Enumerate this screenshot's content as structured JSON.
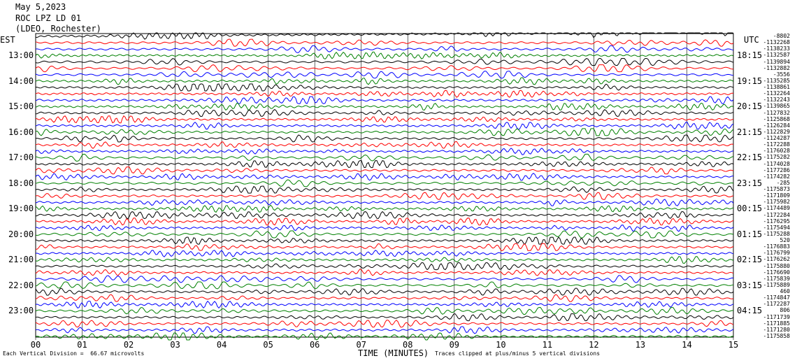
{
  "header": {
    "date": "May 5,2023",
    "station": "ROC LPZ LD 01",
    "location": "(LDEO, Rochester)"
  },
  "left_tz": "EST",
  "right_tz": "UTC",
  "left_times": [
    "13:00",
    "14:00",
    "15:00",
    "16:00",
    "17:00",
    "18:00",
    "19:00",
    "20:00",
    "21:00",
    "22:00",
    "23:00"
  ],
  "right_times": [
    "18:15",
    "19:15",
    "20:15",
    "21:15",
    "22:15",
    "23:15",
    "00:15",
    "01:15",
    "02:15",
    "03:15",
    "04:15"
  ],
  "footer": {
    "scale": "Each Vertical Division =  66.67 microvolts",
    "clip": "Traces clipped at plus/minus 5 vertical divisions"
  },
  "colors": {
    "trace_cycle": [
      "#000000",
      "#ff0000",
      "#0000ff",
      "#008000"
    ],
    "grid": "#000000"
  },
  "chart_data": {
    "type": "line",
    "title": "ROC LPZ LD 01",
    "xlabel": "TIME (MINUTES)",
    "ylabel": "",
    "x_ticks": [
      "00",
      "01",
      "02",
      "03",
      "04",
      "05",
      "06",
      "07",
      "08",
      "09",
      "10",
      "11",
      "12",
      "13",
      "14",
      "15"
    ],
    "xlim": [
      0,
      15
    ],
    "trace_count": 48,
    "minutes_per_trace": 15,
    "trace_offsets": [
      "-8802",
      "-1132268",
      "-1138233",
      "-1132587",
      "-1139894",
      "-1132882",
      "-3556",
      "-1135285",
      "-1138861",
      "-1132264",
      "-1132243",
      "-1139865",
      "-1127832",
      "-1125868",
      "-1126284",
      "-1122829",
      "-1124287",
      "-1172288",
      "-1176028",
      "-1175282",
      "-1174028",
      "-1177286",
      "-1174282",
      "-285",
      "-1175873",
      "-1171809",
      "-1175982",
      "-1174489",
      "-1172284",
      "-1176295",
      "-1175494",
      "-1175288",
      "520",
      "-1176883",
      "-1176799",
      "-1176262",
      "-1175880",
      "-1176690",
      "-1175839",
      "-1175889",
      "460",
      "-1174847",
      "-1172287",
      "806",
      "-1171739",
      "-1171885",
      "-1171280",
      "-1175858"
    ]
  }
}
